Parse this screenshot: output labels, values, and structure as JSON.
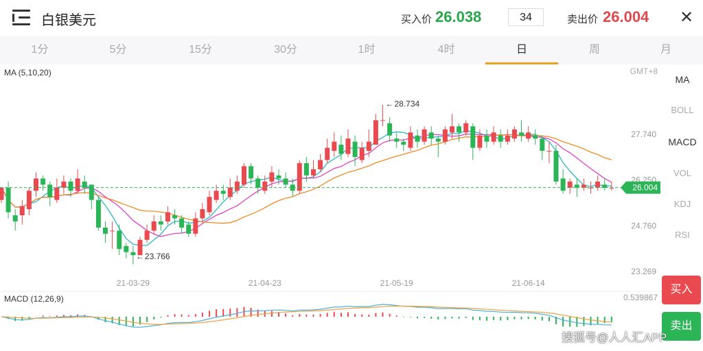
{
  "header": {
    "title": "白银美元",
    "buy_label": "买入价",
    "buy_price": "26.038",
    "quantity": "34",
    "sell_label": "卖出价",
    "sell_price": "26.004",
    "close_icon": "close-icon",
    "menu_icon": "menu-icon"
  },
  "tabs": [
    {
      "label": "1分"
    },
    {
      "label": "5分"
    },
    {
      "label": "15分"
    },
    {
      "label": "30分"
    },
    {
      "label": "1时"
    },
    {
      "label": "4时"
    },
    {
      "label": "日",
      "active": true
    },
    {
      "label": "周"
    },
    {
      "label": "月"
    }
  ],
  "indicators": [
    "MA",
    "BOLL",
    "MACD",
    "VOL",
    "KDJ",
    "RSI"
  ],
  "active_indicators": [
    "MA",
    "MACD"
  ],
  "buttons": {
    "buy": "买入",
    "sell": "卖出"
  },
  "watermark": "搜狐号@人人汇APP",
  "colors": {
    "up": "#e84a4f",
    "down": "#2bb556",
    "ma5": "#29b6c6",
    "ma10": "#e040c0",
    "ma20": "#f08a24",
    "dif": "#4ab0d8",
    "dea": "#f0a040"
  },
  "chart_data": {
    "type": "candlestick",
    "ma_label": "MA (5,10,20)",
    "timezone_label": "GMT+8",
    "y_ticks": [
      "27.740",
      "26.250",
      "24.760",
      "23.269"
    ],
    "x_ticks": [
      "21-03-29",
      "21-04-23",
      "21-05-19",
      "21-06-14"
    ],
    "max_label": "28.734",
    "min_label": "23.766",
    "current_price": "26.004",
    "ylim": [
      23.269,
      28.9
    ],
    "candles": [
      [
        25.6,
        26.0,
        25.5,
        26.0
      ],
      [
        26.0,
        25.2,
        25.0,
        26.2
      ],
      [
        25.1,
        24.9,
        24.6,
        25.3
      ],
      [
        25.1,
        25.4,
        24.8,
        25.6
      ],
      [
        25.3,
        25.9,
        25.1,
        26.0
      ],
      [
        25.9,
        26.3,
        25.7,
        26.5
      ],
      [
        26.3,
        26.1,
        25.9,
        26.4
      ],
      [
        26.1,
        25.7,
        25.4,
        26.2
      ],
      [
        25.6,
        26.0,
        25.5,
        26.3
      ],
      [
        26.0,
        26.2,
        25.8,
        26.4
      ],
      [
        26.2,
        25.9,
        25.7,
        26.3
      ],
      [
        25.9,
        26.3,
        25.8,
        26.6
      ],
      [
        26.2,
        26.0,
        25.8,
        26.4
      ],
      [
        26.1,
        25.6,
        25.3,
        26.1
      ],
      [
        25.6,
        24.7,
        24.6,
        25.7
      ],
      [
        24.7,
        24.5,
        24.2,
        24.9
      ],
      [
        24.6,
        24.6,
        24.0,
        24.9
      ],
      [
        24.6,
        24.0,
        23.8,
        24.8
      ],
      [
        24.1,
        23.9,
        23.7,
        24.2
      ],
      [
        23.9,
        23.8,
        23.5,
        24.1
      ],
      [
        23.8,
        24.3,
        23.8,
        24.4
      ],
      [
        24.3,
        24.6,
        24.2,
        24.8
      ],
      [
        24.6,
        24.9,
        24.5,
        25.1
      ],
      [
        24.9,
        24.8,
        24.6,
        25.1
      ],
      [
        24.9,
        25.2,
        24.8,
        25.4
      ],
      [
        25.1,
        25.0,
        24.8,
        25.3
      ],
      [
        25.0,
        24.7,
        24.5,
        25.1
      ],
      [
        24.8,
        24.5,
        24.4,
        24.9
      ],
      [
        24.5,
        25.0,
        24.4,
        25.2
      ],
      [
        25.0,
        25.3,
        24.9,
        25.5
      ],
      [
        25.2,
        25.7,
        25.1,
        25.9
      ],
      [
        25.6,
        25.9,
        25.5,
        26.1
      ],
      [
        25.9,
        25.8,
        25.6,
        26.1
      ],
      [
        25.7,
        26.0,
        25.6,
        26.3
      ],
      [
        25.9,
        26.2,
        25.8,
        26.4
      ],
      [
        26.1,
        26.7,
        26.0,
        26.8
      ],
      [
        26.7,
        26.3,
        26.1,
        26.8
      ],
      [
        26.3,
        26.0,
        25.8,
        26.4
      ],
      [
        25.9,
        26.2,
        25.8,
        26.4
      ],
      [
        26.2,
        26.5,
        26.0,
        26.7
      ],
      [
        26.4,
        26.3,
        26.1,
        26.6
      ],
      [
        26.3,
        26.1,
        26.0,
        26.5
      ],
      [
        26.1,
        25.9,
        25.7,
        26.3
      ],
      [
        25.9,
        26.8,
        25.8,
        26.9
      ],
      [
        26.8,
        26.4,
        26.2,
        27.0
      ],
      [
        26.4,
        26.6,
        26.3,
        26.9
      ],
      [
        26.6,
        26.9,
        26.5,
        27.1
      ],
      [
        26.9,
        27.3,
        26.8,
        27.6
      ],
      [
        27.2,
        27.5,
        27.0,
        27.8
      ],
      [
        27.4,
        27.1,
        26.9,
        27.7
      ],
      [
        27.1,
        27.6,
        27.0,
        27.9
      ],
      [
        27.5,
        27.0,
        26.7,
        27.7
      ],
      [
        26.9,
        27.3,
        26.8,
        27.5
      ],
      [
        27.2,
        27.5,
        27.0,
        27.9
      ],
      [
        27.4,
        28.2,
        27.4,
        28.4
      ],
      [
        28.2,
        28.2,
        28.0,
        28.7
      ],
      [
        28.1,
        27.7,
        27.5,
        28.3
      ],
      [
        27.6,
        27.5,
        27.3,
        27.8
      ],
      [
        27.5,
        27.4,
        27.2,
        27.6
      ],
      [
        27.3,
        27.8,
        27.2,
        28.0
      ],
      [
        27.7,
        27.5,
        27.3,
        27.9
      ],
      [
        27.5,
        27.9,
        27.4,
        28.0
      ],
      [
        27.8,
        27.6,
        27.4,
        28.0
      ],
      [
        27.6,
        27.5,
        27.0,
        27.7
      ],
      [
        27.5,
        27.9,
        27.4,
        28.0
      ],
      [
        27.8,
        28.0,
        27.6,
        28.4
      ],
      [
        28.0,
        27.8,
        27.5,
        28.1
      ],
      [
        27.8,
        28.1,
        27.7,
        28.2
      ],
      [
        28.0,
        27.3,
        26.9,
        28.1
      ],
      [
        27.3,
        27.7,
        27.2,
        27.9
      ],
      [
        27.7,
        27.5,
        27.3,
        27.9
      ],
      [
        27.5,
        27.8,
        27.4,
        28.0
      ],
      [
        27.7,
        27.5,
        27.3,
        27.9
      ],
      [
        27.5,
        27.7,
        27.4,
        27.9
      ],
      [
        27.6,
        27.9,
        27.5,
        28.0
      ],
      [
        27.8,
        27.7,
        27.5,
        28.2
      ],
      [
        27.6,
        27.8,
        27.5,
        28.0
      ],
      [
        27.7,
        27.6,
        27.4,
        27.9
      ],
      [
        27.6,
        27.2,
        26.9,
        27.7
      ],
      [
        27.2,
        27.2,
        26.8,
        27.5
      ],
      [
        27.2,
        26.2,
        26.1,
        27.4
      ],
      [
        26.3,
        25.9,
        25.8,
        26.6
      ],
      [
        26.0,
        26.2,
        25.8,
        26.3
      ],
      [
        26.1,
        26.0,
        25.7,
        26.3
      ],
      [
        26.0,
        26.1,
        25.9,
        26.3
      ],
      [
        26.0,
        26.0,
        25.8,
        26.2
      ],
      [
        26.0,
        26.2,
        25.9,
        26.4
      ],
      [
        26.1,
        26.0,
        25.9,
        26.3
      ],
      [
        26.0,
        26.0,
        25.9,
        26.2
      ]
    ],
    "macd_label": "MACD (12,26,9)",
    "macd_top_label": "0.539867"
  }
}
